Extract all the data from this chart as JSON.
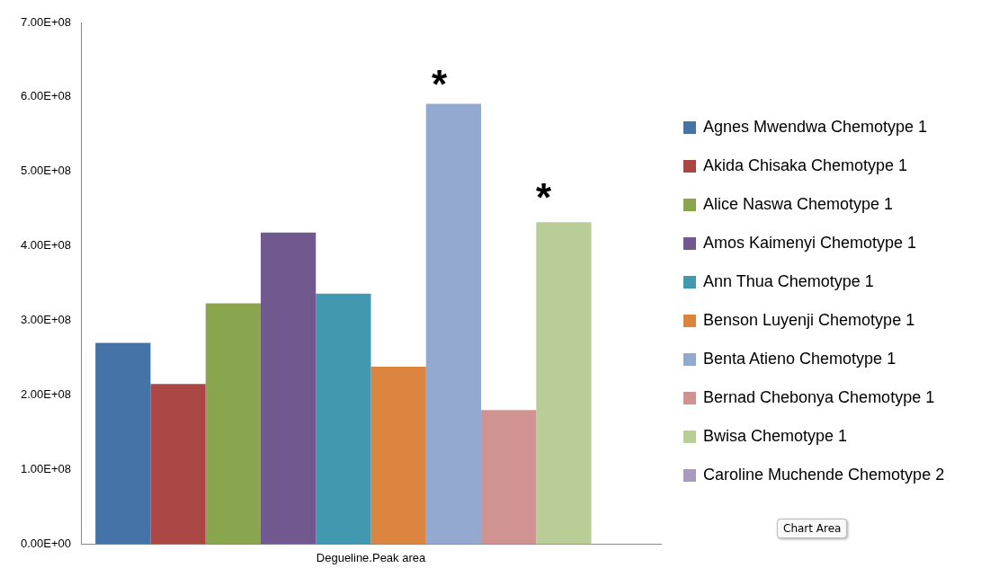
{
  "chart_data": {
    "type": "bar",
    "categories": [
      "Degueline.Peak area"
    ],
    "series": [
      {
        "name": "Agnes Mwendwa Chemotype 1",
        "color": "#4572a7",
        "values": [
          270000000
        ]
      },
      {
        "name": "Akida Chisaka Chemotype 1",
        "color": "#aa4643",
        "values": [
          215000000
        ]
      },
      {
        "name": "Alice Naswa Chemotype 1",
        "color": "#89a54e",
        "values": [
          323000000
        ]
      },
      {
        "name": "Amos Kaimenyi Chemotype 1",
        "color": "#71588f",
        "values": [
          418000000
        ]
      },
      {
        "name": "Ann Thua Chemotype 1",
        "color": "#4198af",
        "values": [
          336000000
        ]
      },
      {
        "name": "Benson Luyenji Chemotype 1",
        "color": "#db843d",
        "values": [
          238000000
        ]
      },
      {
        "name": "Benta Atieno Chemotype 1",
        "color": "#93a9cf",
        "values": [
          591000000
        ]
      },
      {
        "name": "Bernad Chebonya Chemotype 1",
        "color": "#d19392",
        "values": [
          180000000
        ]
      },
      {
        "name": "Bwisa Chemotype 1",
        "color": "#b9cd96",
        "values": [
          432000000
        ]
      },
      {
        "name": "Caroline Muchende Chemotype 2",
        "color": "#a99bbd",
        "values": [
          null
        ]
      }
    ],
    "ylim": [
      0,
      700000000
    ],
    "yticks": [
      {
        "value": 0,
        "label": "0.00E+00"
      },
      {
        "value": 100000000,
        "label": "1.00E+08"
      },
      {
        "value": 200000000,
        "label": "2.00E+08"
      },
      {
        "value": 300000000,
        "label": "3.00E+08"
      },
      {
        "value": 400000000,
        "label": "4.00E+08"
      },
      {
        "value": 500000000,
        "label": "5.00E+08"
      },
      {
        "value": 600000000,
        "label": "6.00E+08"
      },
      {
        "value": 700000000,
        "label": "7.00E+08"
      }
    ],
    "annotations": [
      "*",
      "*",
      "Chart Area"
    ],
    "grid": false,
    "legend": "right"
  }
}
